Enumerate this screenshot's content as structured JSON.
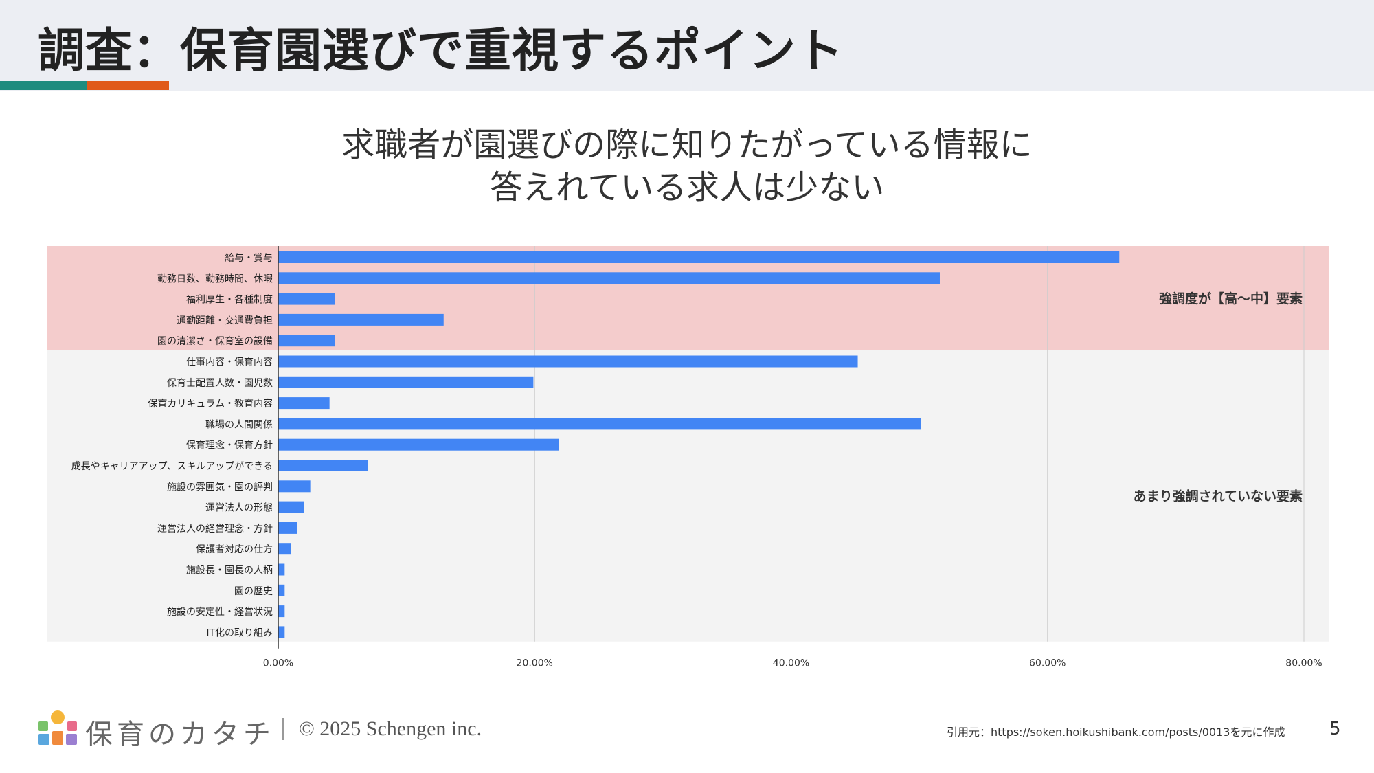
{
  "page": {
    "title": "調査：保育園選びで重視するポイント",
    "subtitle_line1": "求職者が園選びの際に知りたがっている情報に",
    "subtitle_line2": "答えれている求人は少ない",
    "accent_colors": [
      "#1e8c7e",
      "#e05a1a"
    ],
    "page_number": "5"
  },
  "footer": {
    "brand": "保育のカタチ",
    "copyright": "© 2025 Schengen inc.",
    "source": "引用元：https://soken.hoikushibank.com/posts/0013を元に作成"
  },
  "chart_data": {
    "type": "bar",
    "orientation": "horizontal",
    "categories": [
      "給与・賞与",
      "勤務日数、勤務時間、休暇",
      "福利厚生・各種制度",
      "通勤距離・交通費負担",
      "園の清潔さ・保育室の設備",
      "仕事内容・保育内容",
      "保育士配置人数・園児数",
      "保育カリキュラム・教育内容",
      "職場の人間関係",
      "保育理念・保育方針",
      "成長やキャリアアップ、スキルアップができる",
      "施設の雰囲気・園の評判",
      "運営法人の形態",
      "運営法人の経営理念・方針",
      "保護者対応の仕方",
      "施設長・園長の人柄",
      "園の歴史",
      "施設の安定性・経営状況",
      "IT化の取り組み"
    ],
    "values": [
      65.6,
      51.6,
      4.4,
      12.9,
      4.4,
      45.2,
      19.9,
      4.0,
      50.1,
      21.9,
      7.0,
      2.5,
      2.0,
      1.5,
      1.0,
      0.5,
      0.5,
      0.5,
      0.5
    ],
    "xticks": [
      "0.00%",
      "20.00%",
      "40.00%",
      "60.00%",
      "80.00%"
    ],
    "xlim": [
      0,
      80
    ],
    "bar_color": "#4285f4",
    "groups": [
      {
        "label": "強調度が【高～中】要素",
        "from": 0,
        "to": 4,
        "color": "#f4cccc"
      },
      {
        "label": "あまり強調されていない要素",
        "from": 5,
        "to": 18,
        "color": "#f3f3f3"
      }
    ]
  }
}
